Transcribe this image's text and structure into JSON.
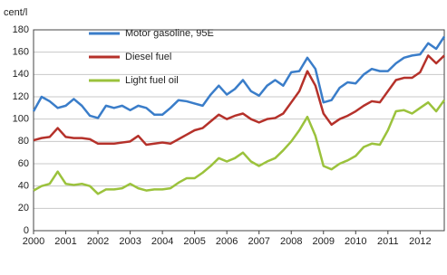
{
  "chart_data": {
    "type": "line",
    "y_label": "cent/l",
    "x": [
      2000,
      2000.25,
      2000.5,
      2000.75,
      2001,
      2001.25,
      2001.5,
      2001.75,
      2002,
      2002.25,
      2002.5,
      2002.75,
      2003,
      2003.25,
      2003.5,
      2003.75,
      2004,
      2004.25,
      2004.5,
      2004.75,
      2005,
      2005.25,
      2005.5,
      2005.75,
      2006,
      2006.25,
      2006.5,
      2006.75,
      2007,
      2007.25,
      2007.5,
      2007.75,
      2008,
      2008.25,
      2008.5,
      2008.75,
      2009,
      2009.25,
      2009.5,
      2009.75,
      2010,
      2010.25,
      2010.5,
      2010.75,
      2011,
      2011.25,
      2011.5,
      2011.75,
      2012,
      2012.25,
      2012.5,
      2012.75
    ],
    "xlim": [
      2000,
      2012.75
    ],
    "xticks": [
      2000,
      2001,
      2002,
      2003,
      2004,
      2005,
      2006,
      2007,
      2008,
      2009,
      2010,
      2011,
      2012
    ],
    "ylim": [
      0,
      180
    ],
    "yticks": [
      0,
      20,
      40,
      60,
      80,
      100,
      120,
      140,
      160,
      180
    ],
    "grid": true,
    "legend": "upper left",
    "series": [
      {
        "name": "Motor gasoline, 95E",
        "color": "#3a7dc9",
        "values": [
          107,
          120,
          116,
          110,
          112,
          118,
          112,
          103,
          101,
          112,
          110,
          112,
          108,
          112,
          110,
          104,
          104,
          110,
          117,
          116,
          114,
          112,
          122,
          130,
          122,
          127,
          135,
          125,
          121,
          130,
          135,
          130,
          142,
          143,
          155,
          145,
          115,
          117,
          128,
          133,
          132,
          140,
          145,
          143,
          143,
          150,
          155,
          157,
          158,
          168,
          163,
          174
        ]
      },
      {
        "name": "Diesel fuel",
        "color": "#b5312a",
        "values": [
          81,
          83,
          84,
          92,
          84,
          83,
          83,
          82,
          78,
          78,
          78,
          79,
          80,
          85,
          77,
          78,
          79,
          78,
          82,
          86,
          90,
          92,
          98,
          104,
          100,
          103,
          105,
          100,
          97,
          100,
          101,
          105,
          115,
          125,
          143,
          130,
          105,
          95,
          100,
          103,
          107,
          112,
          116,
          115,
          125,
          135,
          137,
          137,
          142,
          157,
          150,
          157
        ]
      },
      {
        "name": "Light fuel oil",
        "color": "#9bc23c",
        "values": [
          36,
          40,
          42,
          53,
          42,
          41,
          42,
          40,
          33,
          37,
          37,
          38,
          42,
          38,
          36,
          37,
          37,
          38,
          43,
          47,
          47,
          52,
          58,
          65,
          62,
          65,
          70,
          62,
          58,
          62,
          65,
          72,
          80,
          90,
          102,
          85,
          58,
          55,
          60,
          63,
          67,
          75,
          78,
          77,
          90,
          107,
          108,
          105,
          110,
          115,
          107,
          117
        ]
      }
    ]
  }
}
